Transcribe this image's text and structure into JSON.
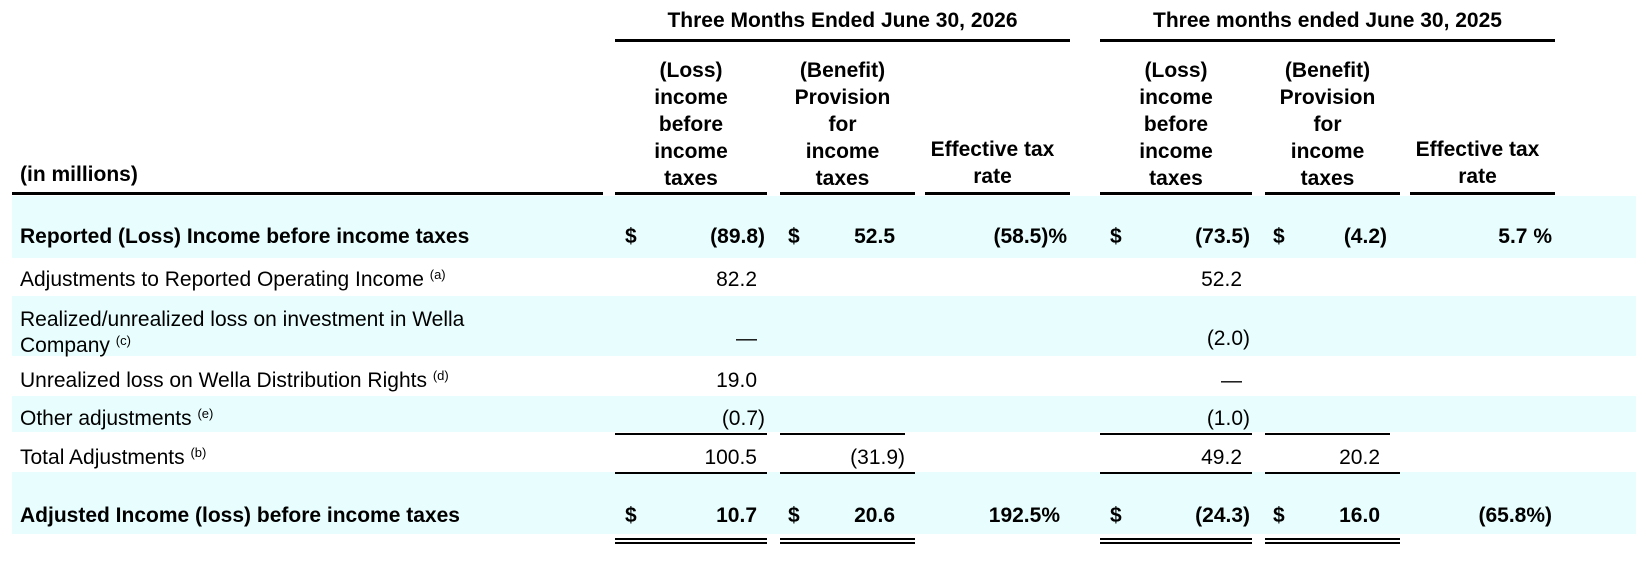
{
  "table": {
    "unit_label": "(in millions)",
    "periods": [
      "Three Months Ended June 30, 2026",
      "Three months ended June 30, 2025"
    ],
    "col_headers": [
      "(Loss)\nincome\nbefore\nincome\ntaxes",
      "(Benefit)\nProvision\nfor\nincome\ntaxes",
      "Effective tax\nrate",
      "(Loss)\nincome\nbefore\nincome\ntaxes",
      "(Benefit)\nProvision\nfor\nincome\ntaxes",
      "Effective tax\nrate"
    ],
    "currency": "$",
    "rows": [
      {
        "label": "Reported (Loss) Income before income taxes",
        "footnote": "",
        "values": [
          "(89.8)",
          "52.5",
          "(58.5)%",
          "(73.5)",
          "(4.2)",
          "5.7 %"
        ]
      },
      {
        "label": "Adjustments to Reported Operating Income",
        "footnote": "(a)",
        "values": [
          "82.2",
          "",
          "",
          "52.2",
          "",
          ""
        ]
      },
      {
        "label_line1": "Realized/unrealized loss on investment in Wella",
        "label_line2": "Company",
        "footnote": "(c)",
        "values": [
          "—",
          "",
          "",
          "(2.0)",
          "",
          ""
        ]
      },
      {
        "label": "Unrealized loss on Wella Distribution Rights",
        "footnote": "(d)",
        "values": [
          "19.0",
          "",
          "",
          "—",
          "",
          ""
        ]
      },
      {
        "label": "Other adjustments",
        "footnote": "(e)",
        "values": [
          "(0.7)",
          "",
          "",
          "(1.0)",
          "",
          ""
        ]
      },
      {
        "label": "Total Adjustments",
        "footnote": "(b)",
        "values": [
          "100.5",
          "(31.9)",
          "",
          "49.2",
          "20.2",
          ""
        ]
      },
      {
        "label": "Adjusted Income (loss) before income taxes",
        "footnote": "",
        "values": [
          "10.7",
          "20.6",
          "192.5%",
          "(24.3)",
          "16.0",
          "(65.8%)"
        ]
      }
    ]
  }
}
